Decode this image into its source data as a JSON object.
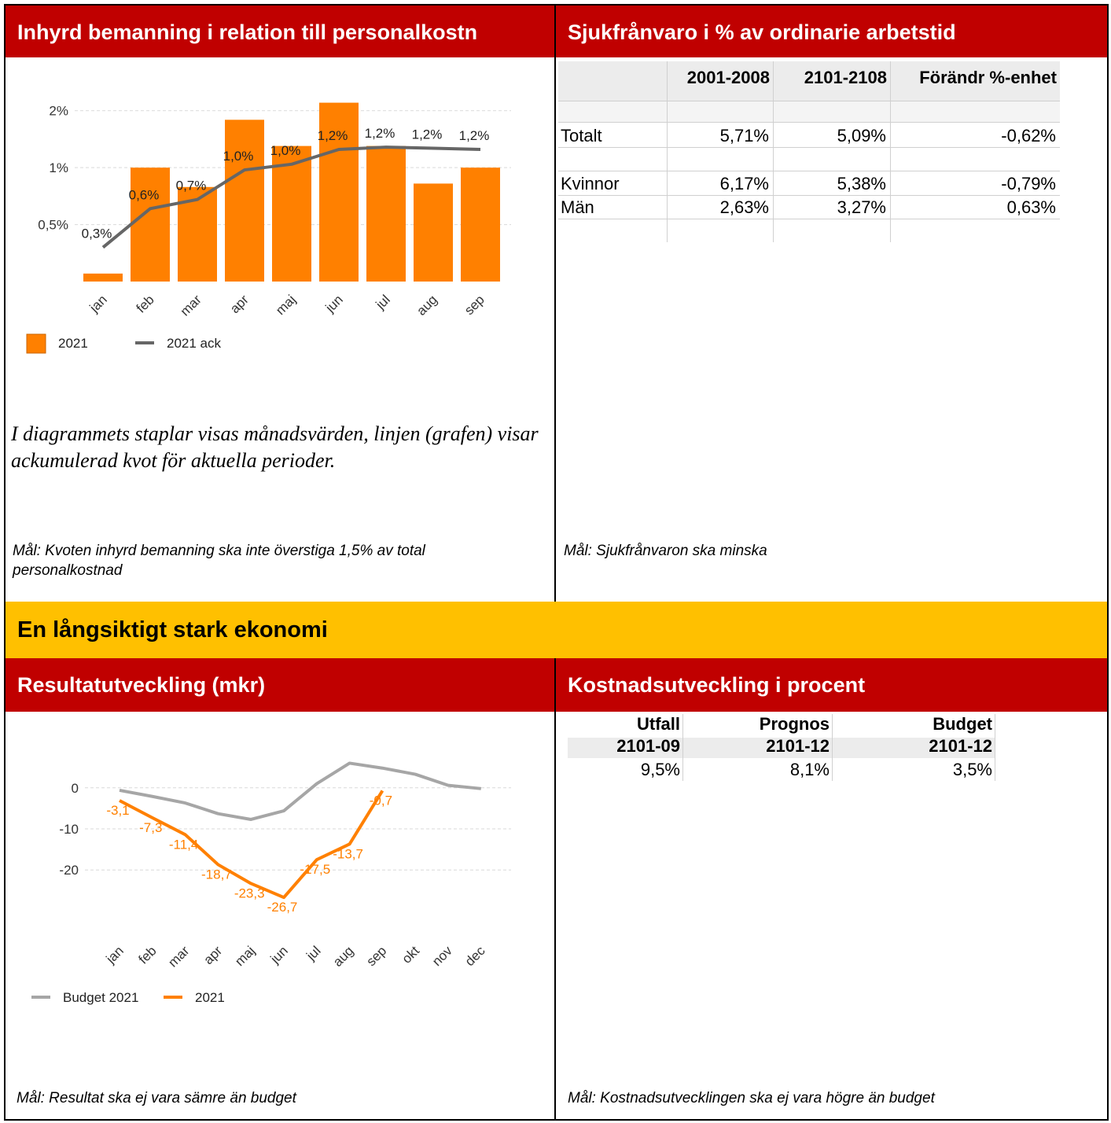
{
  "panels": {
    "top_left": {
      "title": "Inhyrd bemanning i relation till personalkostn",
      "note": "I diagrammets staplar visas månadsvärden, linjen (grafen) visar ackumulerad kvot för aktuella perioder.",
      "goal": "Mål: Kvoten inhyrd bemanning ska inte överstiga 1,5% av total personalkostnad"
    },
    "top_right": {
      "title": "Sjukfrånvaro i % av ordinarie arbetstid",
      "goal": "Mål: Sjukfrånvaron ska minska"
    },
    "bottom_left": {
      "title": "Resultatutveckling (mkr)",
      "goal": "Mål: Resultat ska ej vara sämre än budget"
    },
    "bottom_right": {
      "title": "Kostnadsutveckling i procent",
      "goal": "Mål: Kostnadsutvecklingen ska ej vara högre än budget"
    }
  },
  "banner": "En långsiktigt stark ekonomi",
  "tables": [
    {
      "header": [
        "2001-2008",
        "2101-2108",
        "Förändr %-enhet"
      ],
      "rows": [
        [
          "Totalt",
          "5,71%",
          "5,09%",
          "-0,62%"
        ],
        [
          "Kvinnor",
          "6,17%",
          "5,38%",
          "-0,79%"
        ],
        [
          "Män",
          "2,63%",
          "3,27%",
          "0,63%"
        ]
      ]
    },
    {
      "header": [
        [
          "Utfall",
          "2101-09"
        ],
        [
          "Prognos",
          "2101-12"
        ],
        [
          "Budget",
          "2101-12"
        ]
      ],
      "rows": [
        [
          "9,5%",
          "8,1%",
          "3,5%"
        ]
      ]
    }
  ],
  "chart_data": [
    {
      "type": "combo",
      "categories": [
        "jan",
        "feb",
        "mar",
        "apr",
        "maj",
        "jun",
        "jul",
        "aug",
        "sep"
      ],
      "series": [
        {
          "name": "2021",
          "type": "bar",
          "color": "#ff8000",
          "values": [
            0.07,
            1.0,
            0.83,
            1.42,
            1.19,
            1.57,
            1.19,
            0.86,
            1.0
          ]
        },
        {
          "name": "2021 ack",
          "type": "line",
          "color": "#666666",
          "values": [
            0.3,
            0.64,
            0.72,
            0.98,
            1.03,
            1.16,
            1.18,
            1.17,
            1.16
          ],
          "value_labels": [
            "0,3%",
            "0,6%",
            "0,7%",
            "1,0%",
            "1,0%",
            "1,2%",
            "1,2%",
            "1,2%",
            "1,2%"
          ]
        }
      ],
      "ylim": [
        0,
        1.65
      ],
      "yticks": [
        {
          "value": 1.5,
          "label": "2%"
        },
        {
          "value": 1,
          "label": "1%"
        },
        {
          "value": 0.5,
          "label": "0,5%"
        }
      ],
      "grid": true
    },
    {
      "type": "line",
      "categories": [
        "jan",
        "feb",
        "mar",
        "apr",
        "maj",
        "jun",
        "jul",
        "aug",
        "sep",
        "okt",
        "nov",
        "dec"
      ],
      "series": [
        {
          "name": "Budget 2021",
          "color": "#a6a6a6",
          "values": [
            -0.6,
            -2.1,
            -3.7,
            -6.3,
            -7.7,
            -5.6,
            1.0,
            6.0,
            4.8,
            3.3,
            0.6,
            -0.2
          ]
        },
        {
          "name": "2021",
          "color": "#ff8000",
          "values": [
            -3.1,
            -7.3,
            -11.4,
            -18.7,
            -23.3,
            -26.7,
            -17.5,
            -13.7,
            -0.7,
            null,
            null,
            null
          ],
          "value_labels": [
            "-3,1",
            "-7,3",
            "-11,4",
            "-18,7",
            "-23,3",
            "-26,7",
            "-17,5",
            "-13,7",
            "-0,7",
            null,
            null,
            null
          ]
        }
      ],
      "ylim": [
        -28,
        8
      ],
      "yticks": [
        0,
        -10,
        -20
      ],
      "grid": true
    }
  ]
}
